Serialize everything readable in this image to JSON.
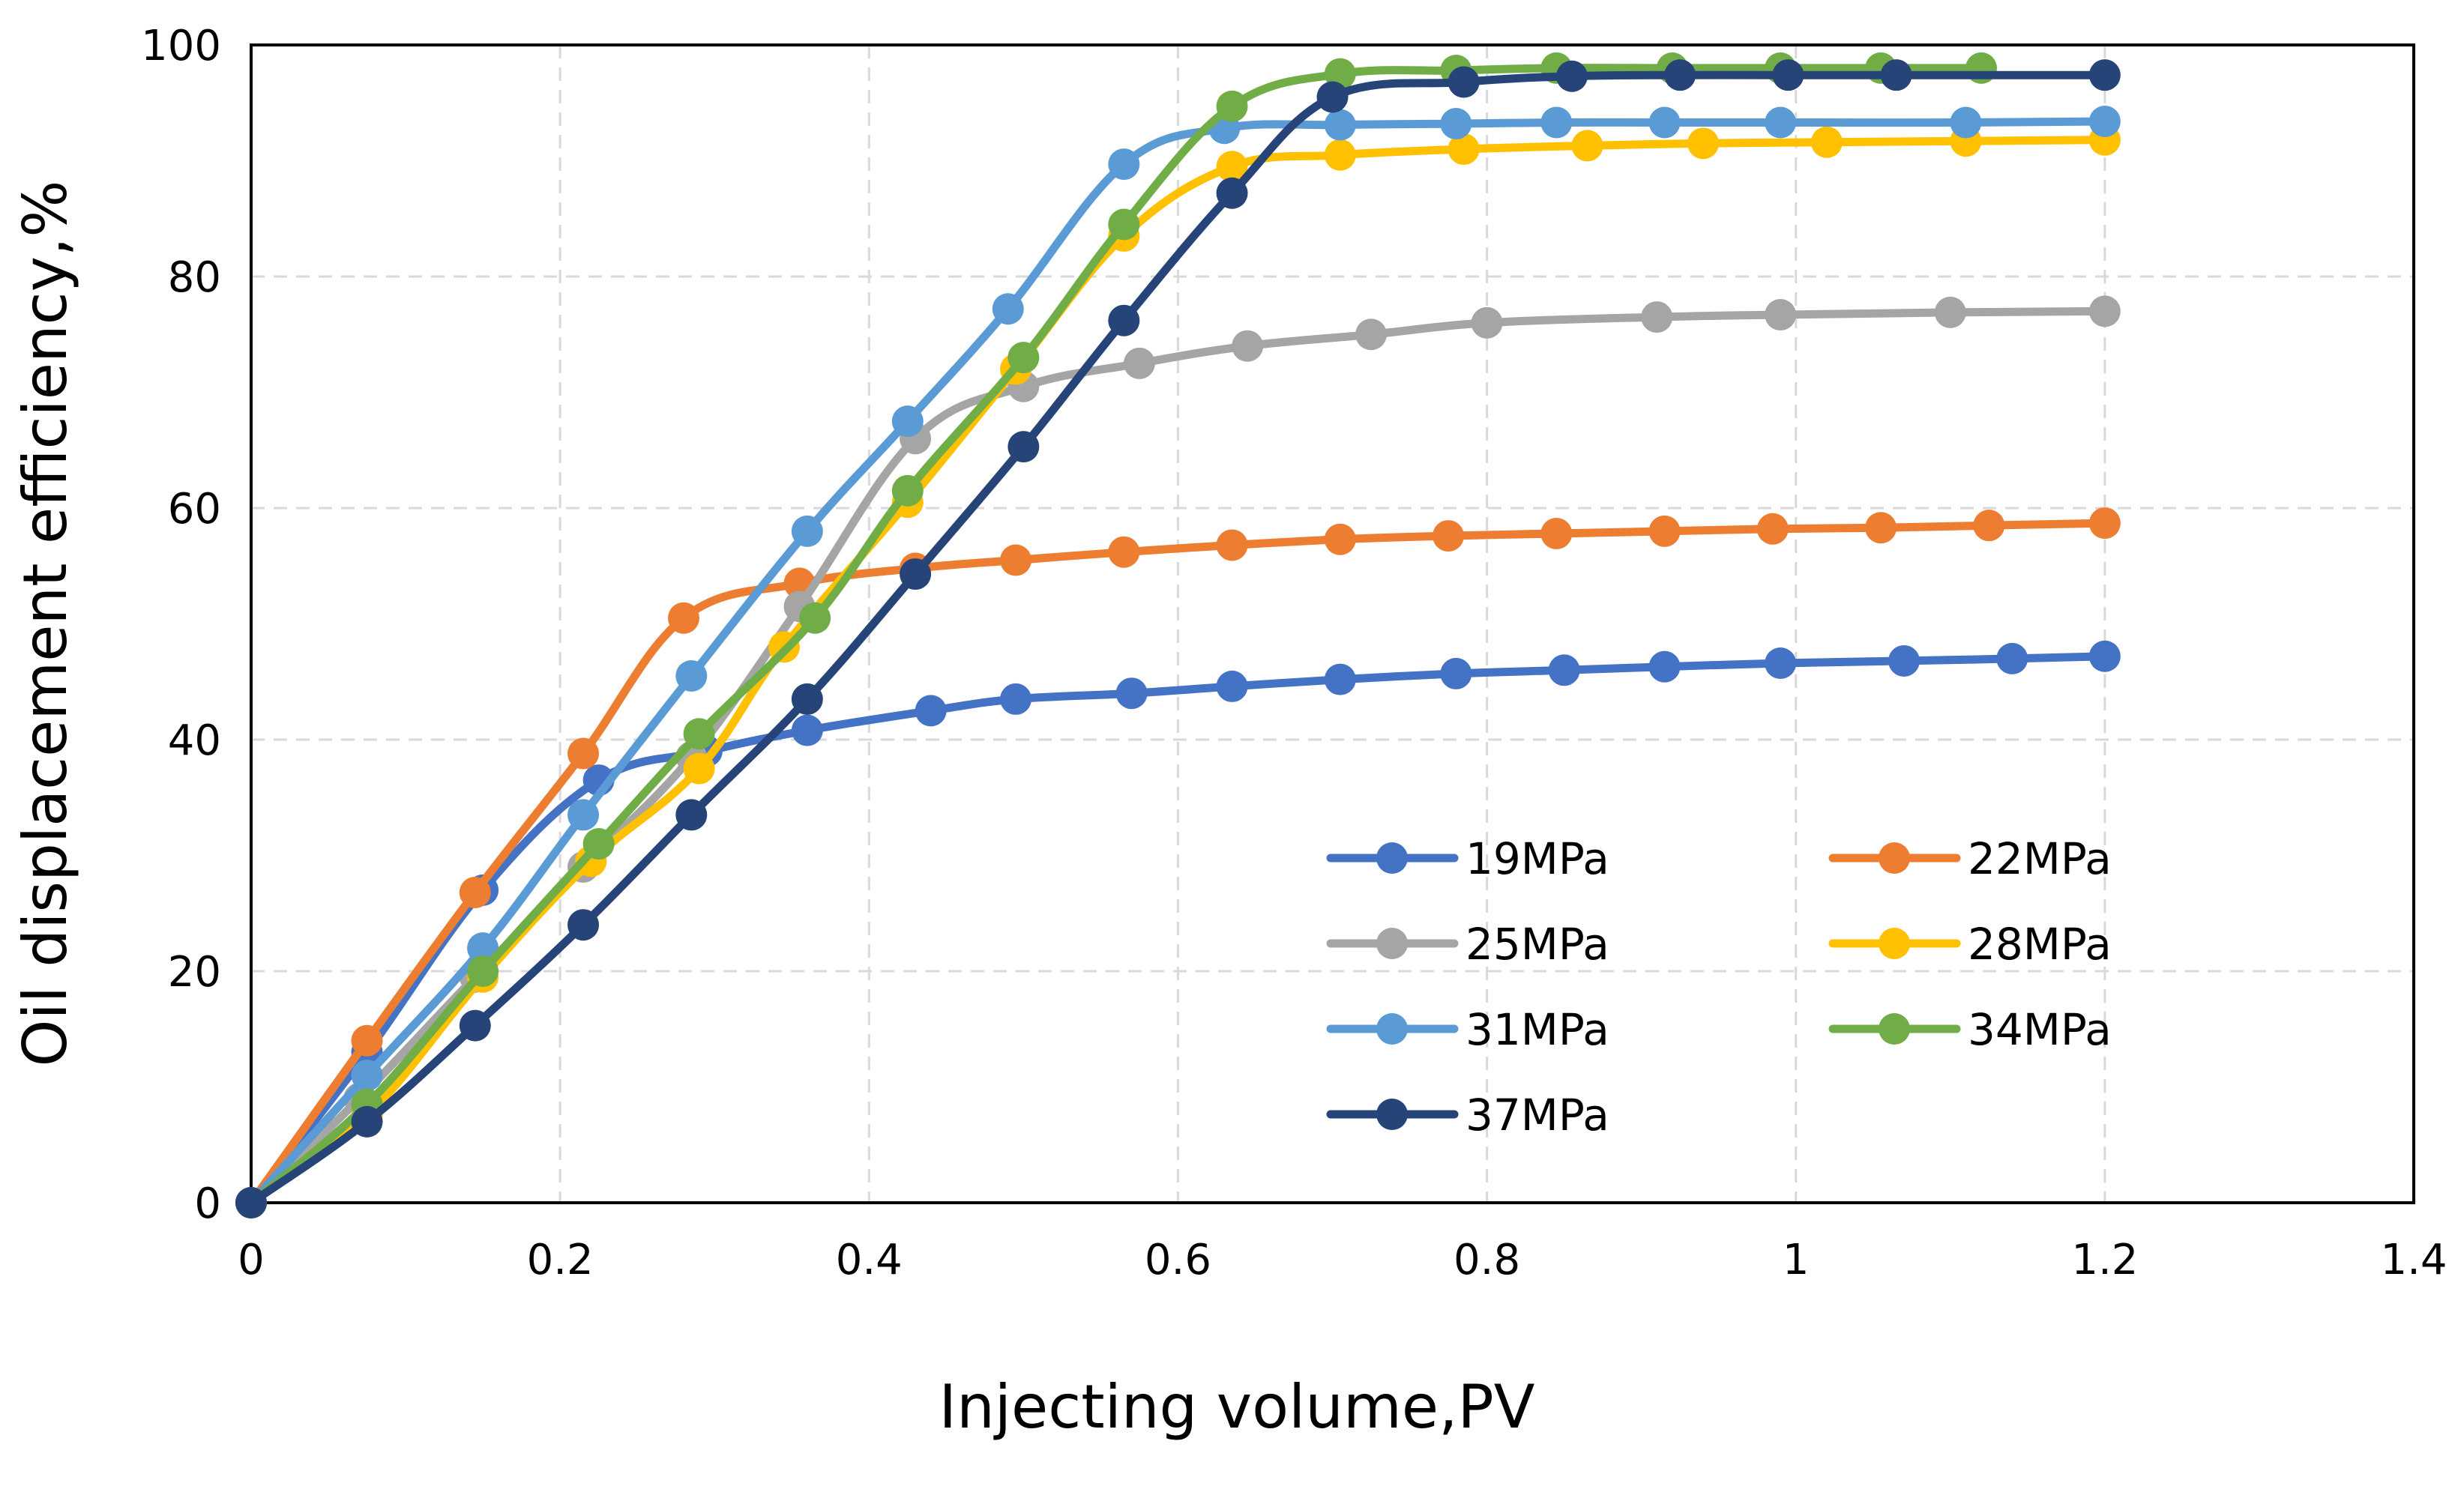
{
  "chart_data": {
    "type": "line",
    "title": "",
    "xlabel": "Injecting volume,PV",
    "ylabel": "Oil displacement efficiency,%",
    "xlim": [
      0,
      1.4
    ],
    "ylim": [
      0,
      100
    ],
    "xticks": [
      0,
      0.2,
      0.4,
      0.6,
      0.8,
      1,
      1.2,
      1.4
    ],
    "xtick_labels": [
      "0",
      "0.2",
      "0.4",
      "0.6",
      "0.8",
      "1",
      "1.2",
      "1.4"
    ],
    "yticks": [
      0,
      20,
      40,
      60,
      80,
      100
    ],
    "ytick_labels": [
      "0",
      "20",
      "40",
      "60",
      "80",
      "100"
    ],
    "grid": true,
    "legend_position": "lower-right",
    "series": [
      {
        "name": "19MPa",
        "color": "#4472C4",
        "x": [
          0,
          0.075,
          0.15,
          0.225,
          0.295,
          0.36,
          0.44,
          0.495,
          0.57,
          0.635,
          0.705,
          0.78,
          0.85,
          0.915,
          0.99,
          1.07,
          1.14,
          1.2
        ],
        "y": [
          0,
          13,
          27,
          36.5,
          39,
          40.8,
          42.5,
          43.5,
          44,
          44.6,
          45.2,
          45.7,
          46,
          46.3,
          46.6,
          46.8,
          47,
          47.2
        ]
      },
      {
        "name": "22MPa",
        "color": "#ED7D31",
        "x": [
          0,
          0.075,
          0.145,
          0.215,
          0.28,
          0.355,
          0.43,
          0.495,
          0.565,
          0.635,
          0.705,
          0.775,
          0.845,
          0.915,
          0.985,
          1.055,
          1.125,
          1.2
        ],
        "y": [
          0,
          14,
          26.8,
          38.8,
          50.5,
          53.5,
          54.8,
          55.5,
          56.2,
          56.8,
          57.3,
          57.6,
          57.8,
          58,
          58.2,
          58.3,
          58.5,
          58.7
        ],
        "x_dense": [
          0,
          0.075,
          0.145,
          0.215,
          0.28,
          0.3,
          0.32,
          0.355
        ],
        "y_dense": [
          0,
          14,
          26.8,
          38.8,
          50.5,
          52.2,
          53,
          53.5
        ]
      },
      {
        "name": "25MPa",
        "color": "#A5A5A5",
        "x": [
          0,
          0.07,
          0.145,
          0.215,
          0.285,
          0.355,
          0.43,
          0.5,
          0.575,
          0.645,
          0.725,
          0.8,
          0.91,
          0.99,
          1.1,
          1.2
        ],
        "y": [
          0,
          9,
          19.5,
          29,
          38.5,
          51.5,
          66,
          70.5,
          72.5,
          74,
          75,
          76,
          76.5,
          76.7,
          76.9,
          77
        ]
      },
      {
        "name": "28MPa",
        "color": "#FFC000",
        "x": [
          0,
          0.075,
          0.15,
          0.22,
          0.29,
          0.345,
          0.425,
          0.495,
          0.565,
          0.635,
          0.705,
          0.785,
          0.865,
          0.94,
          1.02,
          1.11,
          1.2
        ],
        "y": [
          0,
          7.5,
          19.5,
          29.5,
          37.5,
          48,
          60.5,
          72,
          83.5,
          89.5,
          90.5,
          91,
          91.3,
          91.5,
          91.6,
          91.7,
          91.8
        ]
      },
      {
        "name": "31MPa",
        "color": "#5B9BD5",
        "x": [
          0,
          0.075,
          0.15,
          0.215,
          0.285,
          0.36,
          0.425,
          0.49,
          0.565,
          0.63,
          0.705,
          0.78,
          0.845,
          0.915,
          0.99,
          1.11,
          1.2
        ],
        "y": [
          0,
          11,
          22,
          33.5,
          45.5,
          58,
          67.5,
          77.2,
          89.7,
          92.8,
          93.1,
          93.2,
          93.3,
          93.3,
          93.3,
          93.3,
          93.4
        ]
      },
      {
        "name": "34MPa",
        "color": "#70AD47",
        "x": [
          0,
          0.075,
          0.15,
          0.225,
          0.29,
          0.365,
          0.425,
          0.5,
          0.565,
          0.635,
          0.705,
          0.78,
          0.845,
          0.92,
          0.99,
          1.055,
          1.12
        ],
        "y": [
          0,
          8.5,
          20,
          31,
          40.5,
          50.5,
          61.5,
          73,
          84.5,
          94.7,
          97.5,
          97.8,
          98,
          98,
          98,
          98,
          98
        ]
      },
      {
        "name": "37MPa",
        "color": "#264478",
        "x": [
          0,
          0.075,
          0.145,
          0.215,
          0.285,
          0.36,
          0.43,
          0.5,
          0.565,
          0.635,
          0.7,
          0.785,
          0.855,
          0.925,
          0.995,
          1.065,
          1.2
        ],
        "y": [
          0,
          7,
          15.3,
          24,
          33.5,
          43.5,
          54.3,
          65.3,
          76.2,
          87.2,
          95.5,
          96.8,
          97.3,
          97.4,
          97.4,
          97.4,
          97.4
        ]
      }
    ]
  }
}
